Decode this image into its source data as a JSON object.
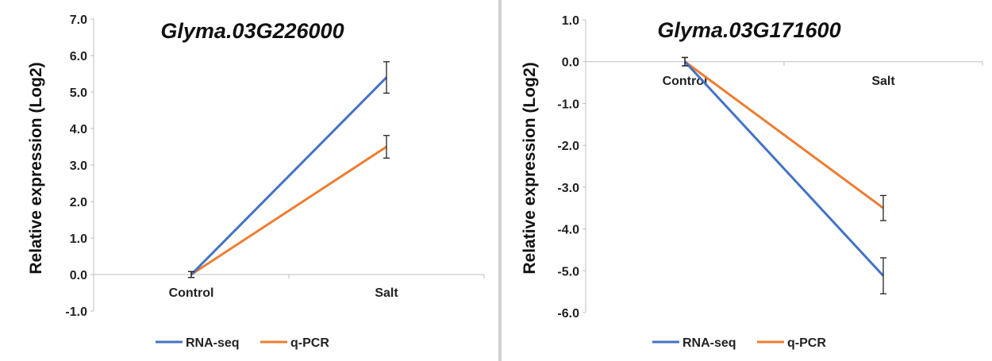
{
  "chart_data": [
    {
      "type": "line",
      "title": "Glyma.03G226000",
      "ylabel": "Relative expression (Log2)",
      "xlabel": "",
      "categories": [
        "Control",
        "Salt"
      ],
      "ylim": [
        -1.0,
        7.0
      ],
      "yticks": [
        "7.0",
        "6.0",
        "5.0",
        "4.0",
        "3.0",
        "2.0",
        "1.0",
        "0.0",
        "-1.0"
      ],
      "grid": false,
      "legend_position": "bottom",
      "series": [
        {
          "name": "RNA-seq",
          "color": "#4472c4",
          "values": [
            0.0,
            5.4
          ],
          "errors": [
            0.08,
            0.43
          ]
        },
        {
          "name": "q-PCR",
          "color": "#ed7d31",
          "values": [
            0.0,
            3.5
          ],
          "errors": [
            0.08,
            0.31
          ]
        }
      ]
    },
    {
      "type": "line",
      "title": "Glyma.03G171600",
      "ylabel": "Relative expression (Log2)",
      "xlabel": "",
      "categories": [
        "Control",
        "Salt"
      ],
      "ylim": [
        -6.0,
        1.0
      ],
      "yticks": [
        "1.0",
        "0.0",
        "-1.0",
        "-2.0",
        "-3.0",
        "-4.0",
        "-5.0",
        "-6.0"
      ],
      "grid": false,
      "legend_position": "bottom",
      "series": [
        {
          "name": "RNA-seq",
          "color": "#4472c4",
          "values": [
            0.0,
            -5.12
          ],
          "errors": [
            0.1,
            0.43
          ]
        },
        {
          "name": "q-PCR",
          "color": "#ed7d31",
          "values": [
            0.0,
            -3.5
          ],
          "errors": [
            0.1,
            0.3
          ]
        }
      ]
    }
  ]
}
